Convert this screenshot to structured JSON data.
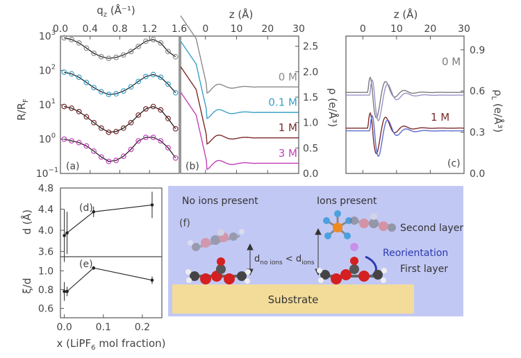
{
  "chart_data": [
    {
      "id": "a",
      "type": "line",
      "panel_label": "(a)",
      "xlabel_prefix": "q",
      "xlabel_sub": "z",
      "xlabel_suffix": " (Å⁻¹)",
      "xticks": [
        "0.0",
        "0.4",
        "0.8",
        "1.2",
        "1.6"
      ],
      "xlim": [
        0.0,
        1.6
      ],
      "ylabel_prefix": "R/R",
      "ylabel_sub": "F",
      "yscale": "log",
      "ylim": [
        0.1,
        1000
      ],
      "yticks": [
        {
          "value": 1000,
          "base": "10",
          "exp": "3"
        },
        {
          "value": 100,
          "base": "10",
          "exp": "2"
        },
        {
          "value": 10,
          "base": "10",
          "exp": "1"
        },
        {
          "value": 1,
          "base": "10",
          "exp": "0"
        },
        {
          "value": 0.1,
          "base": "10",
          "exp": "−1"
        }
      ],
      "series": [
        {
          "name": "0 M",
          "color": "#8a8a8a",
          "offset_decades": 3.0,
          "q": [
            0.05,
            0.15,
            0.25,
            0.35,
            0.45,
            0.55,
            0.65,
            0.75,
            0.85,
            0.95,
            1.05,
            1.15,
            1.25,
            1.35,
            1.45,
            1.55
          ],
          "logR": [
            -0.05,
            -0.1,
            -0.2,
            -0.35,
            -0.5,
            -0.6,
            -0.65,
            -0.62,
            -0.55,
            -0.45,
            -0.3,
            -0.15,
            -0.1,
            -0.2,
            -0.45,
            -0.6
          ]
        },
        {
          "name": "0.1 M",
          "color": "#3aa0c8",
          "offset_decades": 2.0,
          "q": [
            0.05,
            0.15,
            0.25,
            0.35,
            0.45,
            0.55,
            0.65,
            0.75,
            0.85,
            0.95,
            1.05,
            1.15,
            1.25,
            1.35,
            1.45,
            1.55
          ],
          "logR": [
            -0.05,
            -0.1,
            -0.2,
            -0.35,
            -0.5,
            -0.62,
            -0.7,
            -0.68,
            -0.6,
            -0.48,
            -0.32,
            -0.18,
            -0.12,
            -0.2,
            -0.4,
            -0.65
          ]
        },
        {
          "name": "1 M",
          "color": "#7a2a2a",
          "offset_decades": 1.0,
          "q": [
            0.05,
            0.15,
            0.25,
            0.35,
            0.45,
            0.55,
            0.65,
            0.75,
            0.85,
            0.95,
            1.05,
            1.15,
            1.25,
            1.35,
            1.45,
            1.55
          ],
          "logR": [
            -0.05,
            -0.1,
            -0.2,
            -0.35,
            -0.52,
            -0.68,
            -0.8,
            -0.78,
            -0.68,
            -0.52,
            -0.3,
            -0.12,
            -0.05,
            -0.15,
            -0.4,
            -0.7
          ]
        },
        {
          "name": "3 M",
          "color": "#c040b8",
          "offset_decades": 0.0,
          "q": [
            0.05,
            0.15,
            0.25,
            0.35,
            0.45,
            0.55,
            0.65,
            0.75,
            0.85,
            0.95,
            1.05,
            1.15,
            1.25,
            1.35,
            1.45,
            1.55
          ],
          "logR": [
            0.0,
            -0.05,
            -0.1,
            -0.2,
            -0.35,
            -0.52,
            -0.65,
            -0.62,
            -0.5,
            -0.3,
            -0.05,
            0.05,
            0.05,
            -0.05,
            -0.25,
            -0.55
          ]
        }
      ]
    },
    {
      "id": "b",
      "type": "line",
      "panel_label": "(b)",
      "xlabel": "z (Å)",
      "xticks": [
        "0",
        "10",
        "20",
        "30"
      ],
      "xlim": [
        -8,
        30
      ],
      "ylabel": "ρ (e/Å³)",
      "ylim": [
        0.0,
        2.7
      ],
      "yticks": [
        "0.0",
        "0.5",
        "1.0",
        "1.5",
        "2.0",
        "2.5"
      ],
      "series": [
        {
          "name": "0 M",
          "color": "#8a8a8a",
          "offset": 1.5
        },
        {
          "name": "0.1 M",
          "color": "#3aa0c8",
          "offset": 1.0
        },
        {
          "name": "1 M",
          "color": "#7a2a2a",
          "offset": 0.5
        },
        {
          "name": "3 M",
          "color": "#c040b8",
          "offset": 0.0
        }
      ],
      "series_labels": [
        "0 M",
        "0.1 M",
        "1 M",
        "3 M"
      ]
    },
    {
      "id": "c",
      "type": "line",
      "panel_label": "(c)",
      "xlabel": "z (Å)",
      "xticks": [
        "0",
        "10",
        "20",
        "30"
      ],
      "xlim": [
        -5,
        30
      ],
      "ylabel_prefix": "ρ",
      "ylabel_sub": "L",
      "ylabel_suffix": " (e/Å³)",
      "ylim": [
        0.0,
        1.0
      ],
      "yticks": [
        "0.0",
        "0.3",
        "0.6",
        "0.9"
      ],
      "labels": [
        "0 M",
        "1 M"
      ],
      "series": [
        {
          "name": "0 M model",
          "color": "#7a7a7a",
          "offset": 0.4
        },
        {
          "name": "0 M fit",
          "color": "#9a90c8",
          "offset": 0.4
        },
        {
          "name": "1 M model",
          "color": "#7a2a2a",
          "offset": 0.0
        },
        {
          "name": "1 M fit",
          "color": "#5a6ad0",
          "offset": 0.0
        }
      ]
    },
    {
      "id": "d",
      "type": "line",
      "panel_label": "(d)",
      "ylabel": "d (Å)",
      "ylim": [
        3.5,
        4.8
      ],
      "yticks": [
        "4.8",
        "4.4",
        "4.0",
        "3.6"
      ],
      "x": [
        0.0,
        0.007,
        0.075,
        0.225
      ],
      "y": [
        3.9,
        3.95,
        4.35,
        4.48
      ],
      "err": [
        0.5,
        0.4,
        0.1,
        0.25
      ],
      "xlim": [
        -0.01,
        0.25
      ]
    },
    {
      "id": "e",
      "type": "line",
      "panel_label": "(e)",
      "ylabel": "ξ/d",
      "ylim": [
        0.5,
        1.15
      ],
      "yticks": [
        "1.0",
        "0.8",
        "0.6"
      ],
      "x": [
        0.0,
        0.007,
        0.075,
        0.225
      ],
      "y": [
        0.78,
        0.78,
        1.03,
        0.9
      ],
      "err": [
        0.1,
        0.05,
        0.02,
        0.04
      ],
      "xlim": [
        -0.01,
        0.25
      ],
      "xticks": [
        "0.0",
        "0.1",
        "0.2"
      ],
      "xlabel_prefix": "x (LiPF",
      "xlabel_sub": "6",
      "xlabel_suffix": " mol fraction)"
    }
  ],
  "schematic": {
    "panel_label": "(f)",
    "left_title": "No ions present",
    "right_title": "Ions present",
    "second_layer": "Second layer",
    "first_layer": "First layer",
    "reorientation": "Reorientation",
    "substrate": "Substrate",
    "d_no_ions": "no ions",
    "d_ions": "ions",
    "d_letter": "d",
    "compare": " < ",
    "bg_color": "#c2c8f4",
    "substrate_color": "#f3dc9a"
  }
}
